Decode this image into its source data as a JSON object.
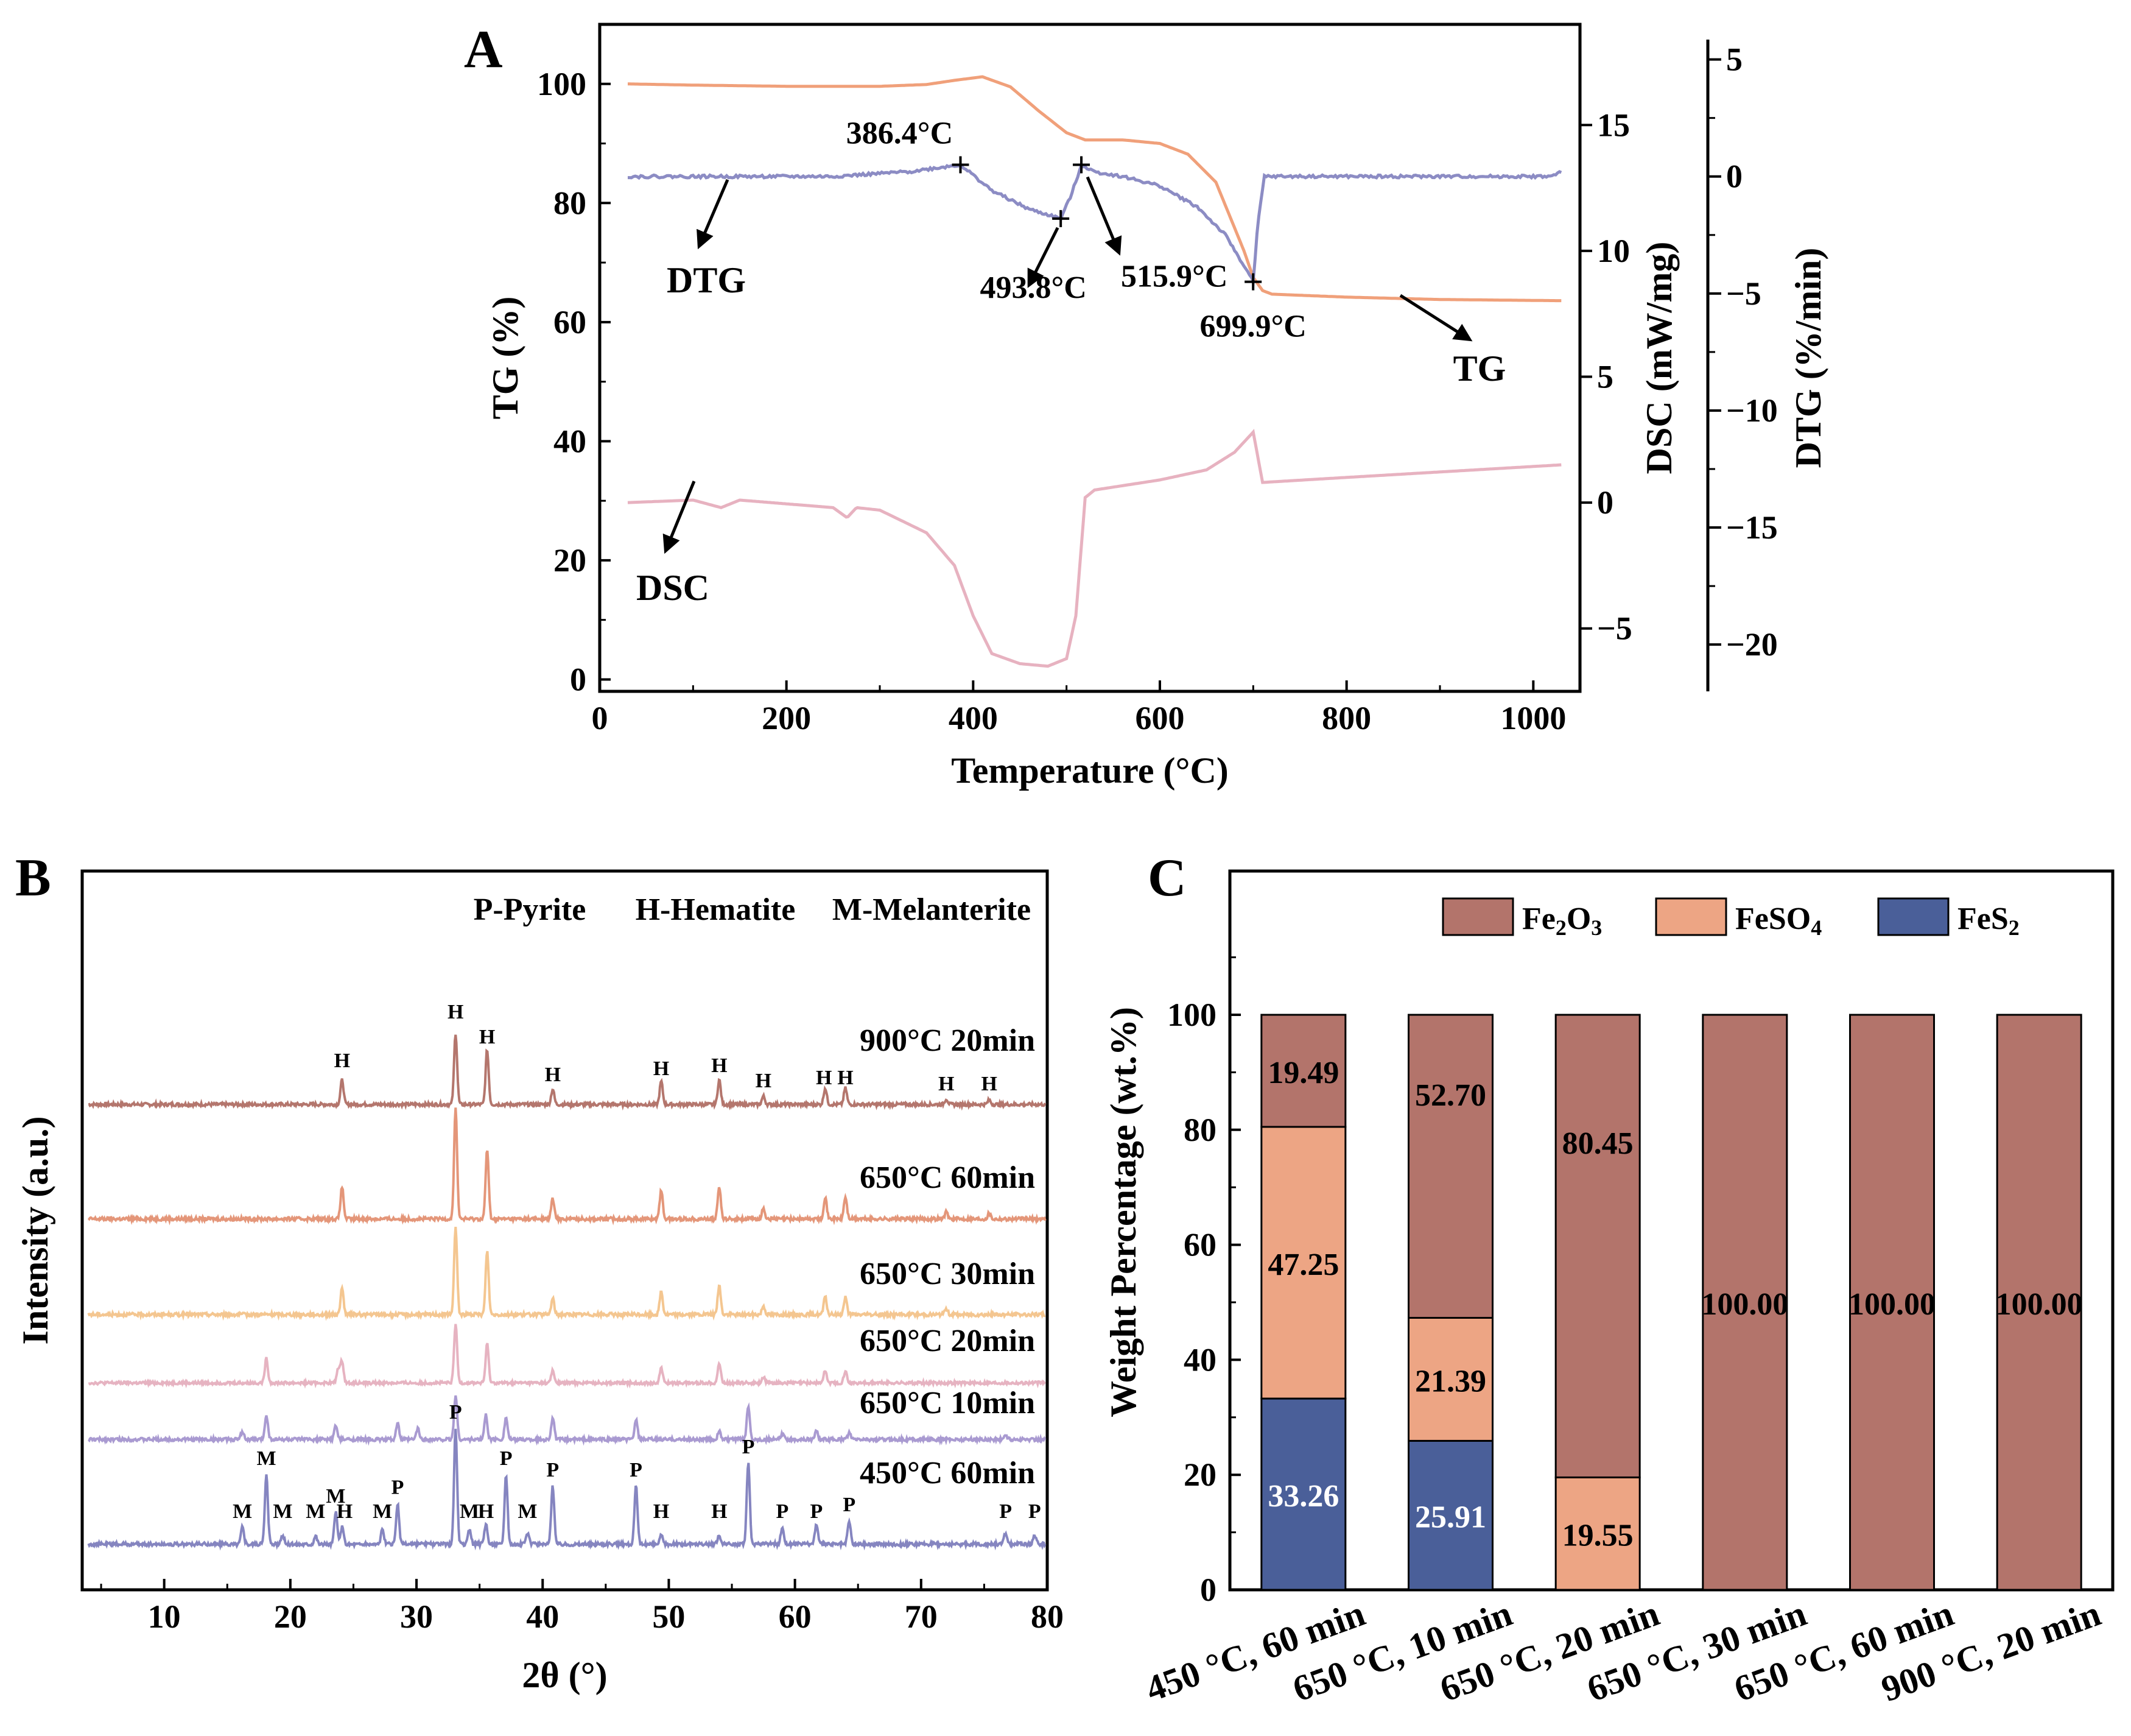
{
  "chart_data": [
    {
      "panel": "A",
      "type": "line",
      "xlabel": "Temperature (°C)",
      "xlim": [
        0,
        1050
      ],
      "x_ticks": [
        0,
        200,
        400,
        600,
        800,
        1000
      ],
      "axes": [
        {
          "id": "tg",
          "label": "TG (%)",
          "ylim": [
            -2,
            110
          ],
          "ticks": [
            0,
            20,
            40,
            60,
            80,
            100
          ]
        },
        {
          "id": "dsc",
          "label": "DSC (mW/mg)",
          "ylim": [
            -7.5,
            19
          ],
          "ticks": [
            -5,
            0,
            5,
            10,
            15
          ]
        },
        {
          "id": "dtg",
          "label": "DTG (%/min)",
          "ylim": [
            -22,
            6.5
          ],
          "ticks": [
            5,
            0,
            -5,
            -10,
            -15,
            -20
          ]
        }
      ],
      "series": [
        {
          "name": "TG",
          "axis": "tg",
          "color": "#f0a07a",
          "x": [
            30,
            100,
            200,
            300,
            350,
            380,
            410,
            440,
            470,
            500,
            520,
            560,
            600,
            630,
            660,
            690,
            700,
            710,
            720,
            800,
            900,
            1030
          ],
          "y": [
            100,
            99.8,
            99.6,
            99.6,
            99.9,
            100.6,
            101.2,
            99.5,
            95.5,
            91.8,
            90.6,
            90.6,
            90.0,
            88.2,
            83.5,
            72.0,
            67.5,
            65.3,
            64.7,
            64.2,
            63.8,
            63.6
          ]
        },
        {
          "name": "DTG",
          "axis": "dtg",
          "color": "#8c8cc4",
          "x": [
            30,
            150,
            250,
            330,
            386.4,
            420,
            460,
            493.8,
            505,
            515.9,
            530,
            560,
            600,
            640,
            670,
            690,
            699.9,
            705,
            712,
            800,
            900,
            1020,
            1030
          ],
          "y": [
            0.0,
            0.0,
            0.0,
            0.2,
            0.5,
            -0.6,
            -1.4,
            -1.8,
            -0.8,
            0.5,
            0.2,
            0.0,
            -0.4,
            -1.3,
            -2.5,
            -3.8,
            -4.5,
            -2.0,
            0.0,
            0.0,
            0.0,
            0.0,
            0.2
          ]
        },
        {
          "name": "DSC",
          "axis": "dsc",
          "color": "#e7b2c0",
          "x": [
            30,
            100,
            130,
            150,
            250,
            265,
            275,
            300,
            350,
            380,
            400,
            420,
            450,
            480,
            500,
            510,
            520,
            530,
            600,
            650,
            680,
            700,
            710,
            800,
            1030
          ],
          "y": [
            0.0,
            0.1,
            -0.2,
            0.1,
            -0.2,
            -0.6,
            -0.2,
            -0.3,
            -1.2,
            -2.5,
            -4.5,
            -6.0,
            -6.4,
            -6.5,
            -6.2,
            -4.5,
            0.2,
            0.5,
            0.9,
            1.3,
            2.0,
            2.8,
            0.8,
            1.0,
            1.5
          ]
        }
      ],
      "markers": [
        {
          "series": "DTG",
          "x": 386.4,
          "label": "386.4°C"
        },
        {
          "series": "DTG",
          "x": 493.8,
          "label": "493.8°C"
        },
        {
          "series": "DTG",
          "x": 515.9,
          "label": "515.9°C"
        },
        {
          "series": "DTG",
          "x": 699.9,
          "label": "699.9°C"
        }
      ],
      "curve_labels": [
        "DTG",
        "TG",
        "DSC"
      ]
    },
    {
      "panel": "B",
      "type": "line",
      "xlabel": "2θ (°)",
      "ylabel": "Intensity (a.u.)",
      "xlim": [
        3.5,
        80
      ],
      "x_ticks": [
        10,
        20,
        30,
        40,
        50,
        60,
        70,
        80
      ],
      "legend_text": [
        "P-Pyrite",
        "H-Hematite",
        "M-Melanterite"
      ],
      "series": [
        {
          "name": "900°C 20min",
          "color": "#b4766d",
          "peaks": [
            [
              24.1,
              0.45
            ],
            [
              33.1,
              1.3
            ],
            [
              35.6,
              1.0
            ],
            [
              40.8,
              0.28
            ],
            [
              49.4,
              0.42
            ],
            [
              54.0,
              0.45
            ],
            [
              57.5,
              0.15
            ],
            [
              62.4,
              0.3
            ],
            [
              64.0,
              0.3
            ],
            [
              72.0,
              0.1
            ],
            [
              75.4,
              0.08
            ]
          ]
        },
        {
          "name": "650°C 60min",
          "color": "#e49679",
          "peaks": [
            [
              24.1,
              0.55
            ],
            [
              33.1,
              1.9
            ],
            [
              35.6,
              1.2
            ],
            [
              40.8,
              0.35
            ],
            [
              49.4,
              0.5
            ],
            [
              54.0,
              0.55
            ],
            [
              57.5,
              0.18
            ],
            [
              62.4,
              0.38
            ],
            [
              64.0,
              0.38
            ],
            [
              72.0,
              0.12
            ],
            [
              75.4,
              0.1
            ]
          ]
        },
        {
          "name": "650°C 30min",
          "color": "#f4c690",
          "peaks": [
            [
              24.1,
              0.45
            ],
            [
              33.1,
              1.5
            ],
            [
              35.6,
              1.1
            ],
            [
              40.8,
              0.28
            ],
            [
              49.4,
              0.4
            ],
            [
              54.0,
              0.5
            ],
            [
              57.5,
              0.15
            ],
            [
              62.4,
              0.3
            ],
            [
              64.0,
              0.3
            ],
            [
              72.0,
              0.1
            ]
          ]
        },
        {
          "name": "650°C 20min",
          "color": "#e6b3c1",
          "peaks": [
            [
              18.1,
              0.5
            ],
            [
              23.8,
              0.3
            ],
            [
              24.1,
              0.45
            ],
            [
              33.1,
              1.2
            ],
            [
              35.6,
              0.8
            ],
            [
              40.8,
              0.25
            ],
            [
              49.4,
              0.3
            ],
            [
              54.0,
              0.4
            ],
            [
              57.5,
              0.12
            ],
            [
              62.4,
              0.25
            ],
            [
              64.0,
              0.25
            ]
          ]
        },
        {
          "name": "650°C 10min",
          "color": "#a99ad1",
          "peaks": [
            [
              16.2,
              0.15
            ],
            [
              18.1,
              0.45
            ],
            [
              23.6,
              0.25
            ],
            [
              28.5,
              0.3
            ],
            [
              30.1,
              0.2
            ],
            [
              33.1,
              0.8
            ],
            [
              35.5,
              0.45
            ],
            [
              37.1,
              0.4
            ],
            [
              40.8,
              0.4
            ],
            [
              47.4,
              0.35
            ],
            [
              54.0,
              0.15
            ],
            [
              56.3,
              0.6
            ],
            [
              59.0,
              0.1
            ],
            [
              61.7,
              0.15
            ],
            [
              64.3,
              0.12
            ],
            [
              76.7,
              0.08
            ]
          ]
        },
        {
          "name": "450°C 60min",
          "color": "#8585c0",
          "peaks": [
            [
              16.2,
              0.3
            ],
            [
              18.1,
              1.2
            ],
            [
              19.4,
              0.15
            ],
            [
              22.0,
              0.15
            ],
            [
              23.6,
              0.55
            ],
            [
              24.1,
              0.3
            ],
            [
              27.3,
              0.25
            ],
            [
              28.5,
              0.7
            ],
            [
              33.1,
              2.0
            ],
            [
              34.2,
              0.25
            ],
            [
              35.5,
              0.35
            ],
            [
              37.1,
              1.2
            ],
            [
              38.8,
              0.2
            ],
            [
              40.8,
              1.0
            ],
            [
              47.4,
              1.0
            ],
            [
              49.4,
              0.15
            ],
            [
              54.0,
              0.15
            ],
            [
              56.3,
              1.4
            ],
            [
              59.0,
              0.3
            ],
            [
              61.7,
              0.35
            ],
            [
              64.3,
              0.4
            ],
            [
              76.7,
              0.2
            ],
            [
              79.0,
              0.15
            ]
          ]
        }
      ],
      "peak_labels": {
        "900°C 20min": [
          [
            24.1,
            "H"
          ],
          [
            33.1,
            "H"
          ],
          [
            35.6,
            "H"
          ],
          [
            40.8,
            "H"
          ],
          [
            49.4,
            "H"
          ],
          [
            54.0,
            "H"
          ],
          [
            57.5,
            "H"
          ],
          [
            62.3,
            "H"
          ],
          [
            64.0,
            "H"
          ],
          [
            72.0,
            "H"
          ],
          [
            75.4,
            "H"
          ]
        ],
        "450°C 60min": [
          [
            16.2,
            "M"
          ],
          [
            18.1,
            "M"
          ],
          [
            19.4,
            "M"
          ],
          [
            22.0,
            "M"
          ],
          [
            23.6,
            "M"
          ],
          [
            24.3,
            "H"
          ],
          [
            27.3,
            "M"
          ],
          [
            28.5,
            "P"
          ],
          [
            33.1,
            "P"
          ],
          [
            34.2,
            "M"
          ],
          [
            35.5,
            "H"
          ],
          [
            37.1,
            "P"
          ],
          [
            38.8,
            "M"
          ],
          [
            40.8,
            "P"
          ],
          [
            47.4,
            "P"
          ],
          [
            49.4,
            "H"
          ],
          [
            54.0,
            "H"
          ],
          [
            56.3,
            "P"
          ],
          [
            59.0,
            "P"
          ],
          [
            61.7,
            "P"
          ],
          [
            64.3,
            "P"
          ],
          [
            76.7,
            "P"
          ],
          [
            79.0,
            "P"
          ]
        ]
      }
    },
    {
      "panel": "C",
      "type": "bar",
      "stacked": true,
      "ylabel": "Weight Percentage (wt.%)",
      "ylim": [
        0,
        125
      ],
      "y_ticks": [
        0,
        20,
        40,
        60,
        80,
        100
      ],
      "categories": [
        "450 °C, 60 min",
        "650 °C, 10 min",
        "650 °C, 20 min",
        "650 °C, 30 min",
        "650 °C, 60 min",
        "900 °C, 20 min"
      ],
      "series": [
        {
          "name": "FeS2",
          "legend_main": "FeS",
          "legend_sub": "2",
          "color": "#4a5f99",
          "values": [
            33.26,
            25.91,
            0,
            0,
            0,
            0
          ],
          "labels": [
            "33.26",
            "25.91",
            "",
            "",
            "",
            ""
          ]
        },
        {
          "name": "FeSO4",
          "legend_main": "FeSO",
          "legend_sub": "4",
          "color": "#eda584",
          "values": [
            47.25,
            21.39,
            19.55,
            0,
            0,
            0
          ],
          "labels": [
            "47.25",
            "21.39",
            "19.55",
            "",
            "",
            ""
          ]
        },
        {
          "name": "Fe2O3",
          "legend_main": "Fe",
          "legend_sub": "2",
          "legend_main2": "O",
          "legend_sub2": "3",
          "color": "#b3746b",
          "values": [
            19.49,
            52.7,
            80.45,
            100.0,
            100.0,
            100.0
          ],
          "labels": [
            "19.49",
            "52.70",
            "80.45",
            "100.00",
            "100.00",
            "100.00"
          ]
        }
      ]
    }
  ],
  "panels": {
    "a": "A",
    "b": "B",
    "c": "C"
  }
}
